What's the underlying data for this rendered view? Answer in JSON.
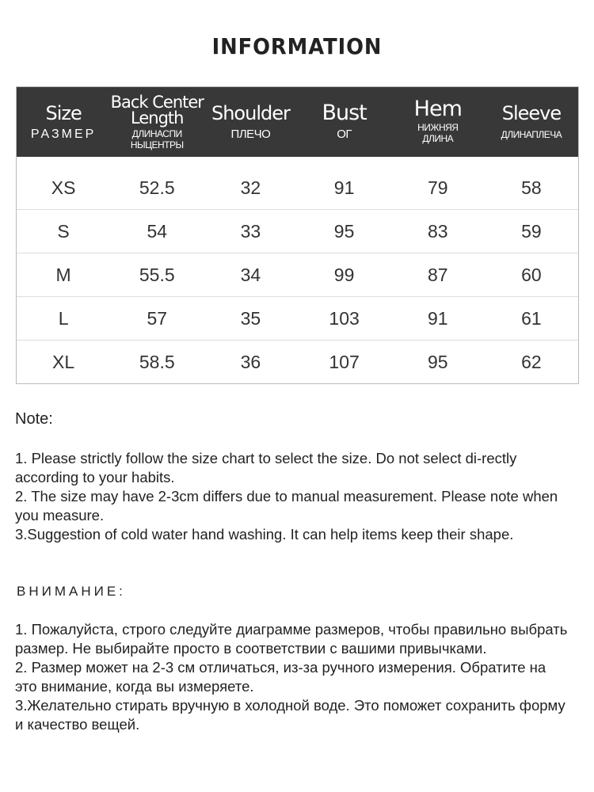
{
  "title": "INFORMATION",
  "table": {
    "headers": [
      {
        "en": "Size",
        "ru": "РАЗМЕР"
      },
      {
        "en": "Back Center Length",
        "ru": "ДЛИНАСПИ НЫЦЕНТРЫ"
      },
      {
        "en": "Shoulder",
        "ru": "ПЛЕЧО"
      },
      {
        "en": "Bust",
        "ru": "ОГ"
      },
      {
        "en": "Hem",
        "ru": "НИЖНЯЯ ДЛИНА"
      },
      {
        "en": "Sleeve",
        "ru": "ДЛИНАПЛЕЧА"
      }
    ],
    "rows": [
      [
        "XS",
        "52.5",
        "32",
        "91",
        "79",
        "58"
      ],
      [
        "S",
        "54",
        "33",
        "95",
        "83",
        "59"
      ],
      [
        "M",
        "55.5",
        "34",
        "99",
        "87",
        "60"
      ],
      [
        "L",
        "57",
        "35",
        "103",
        "91",
        "61"
      ],
      [
        "XL",
        "58.5",
        "36",
        "107",
        "95",
        "62"
      ]
    ]
  },
  "note": {
    "heading": "Note:",
    "items": [
      "1. Please strictly follow the size chart  to select the size. Do not select di-rectly according to your habits.",
      "2. The size may have 2-3cm differs due to manual measurement. Please note when you measure.",
      "3.Suggestion of cold water hand washing. It can help items keep their shape."
    ]
  },
  "note_ru": {
    "heading": "ВНИМАНИЕ:",
    "items": [
      "1. Пожалуйста, строго следуйте диаграмме размеров, чтобы правильно выбрать размер. Не выбирайте просто в соответствии с вашими привычками.",
      "2. Размер может на 2-3 см отличаться, из-за ручного измерения. Обратите на это внимание, когда вы измеряете.",
      "3.Желательно стирать вручную в холодной воде. Это поможет сохранить форму и качество вещей."
    ]
  }
}
